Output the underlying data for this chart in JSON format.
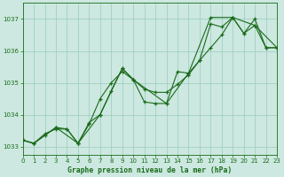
{
  "title": "Graphe pression niveau de la mer (hPa)",
  "bg_color": "#cce8e0",
  "grid_color": "#99ccbb",
  "line_color": "#1a6b1a",
  "x_min": 0,
  "x_max": 23,
  "y_min": 1032.75,
  "y_max": 1037.5,
  "yticks": [
    1033,
    1034,
    1035,
    1036,
    1037
  ],
  "series1": [
    [
      0,
      1033.2
    ],
    [
      1,
      1033.1
    ],
    [
      2,
      1033.35
    ],
    [
      3,
      1033.6
    ],
    [
      4,
      1033.55
    ],
    [
      5,
      1033.1
    ],
    [
      6,
      1033.7
    ],
    [
      7,
      1034.5
    ],
    [
      8,
      1035.0
    ],
    [
      9,
      1035.35
    ],
    [
      10,
      1035.1
    ],
    [
      11,
      1034.8
    ],
    [
      12,
      1034.7
    ],
    [
      13,
      1034.7
    ],
    [
      14,
      1034.95
    ],
    [
      15,
      1035.25
    ],
    [
      16,
      1035.7
    ],
    [
      17,
      1036.85
    ],
    [
      18,
      1036.75
    ],
    [
      19,
      1037.05
    ],
    [
      20,
      1036.55
    ],
    [
      21,
      1037.0
    ],
    [
      22,
      1036.1
    ],
    [
      23,
      1036.1
    ]
  ],
  "series2": [
    [
      0,
      1033.2
    ],
    [
      1,
      1033.1
    ],
    [
      2,
      1033.4
    ],
    [
      3,
      1033.55
    ],
    [
      4,
      1033.55
    ],
    [
      5,
      1033.1
    ],
    [
      6,
      1033.75
    ],
    [
      7,
      1034.0
    ],
    [
      8,
      1034.75
    ],
    [
      9,
      1035.45
    ],
    [
      10,
      1035.1
    ],
    [
      11,
      1034.4
    ],
    [
      12,
      1034.35
    ],
    [
      13,
      1034.35
    ],
    [
      14,
      1035.35
    ],
    [
      15,
      1035.3
    ],
    [
      16,
      1035.7
    ],
    [
      17,
      1036.1
    ],
    [
      18,
      1036.5
    ],
    [
      19,
      1037.05
    ],
    [
      20,
      1036.55
    ],
    [
      21,
      1036.8
    ],
    [
      22,
      1036.1
    ],
    [
      23,
      1036.1
    ]
  ],
  "series3": [
    [
      0,
      1033.2
    ],
    [
      1,
      1033.1
    ],
    [
      3,
      1033.6
    ],
    [
      5,
      1033.1
    ],
    [
      7,
      1034.0
    ],
    [
      9,
      1035.45
    ],
    [
      10,
      1035.1
    ],
    [
      13,
      1034.35
    ],
    [
      15,
      1035.3
    ],
    [
      17,
      1037.05
    ],
    [
      19,
      1037.05
    ],
    [
      21,
      1036.8
    ],
    [
      23,
      1036.1
    ]
  ]
}
